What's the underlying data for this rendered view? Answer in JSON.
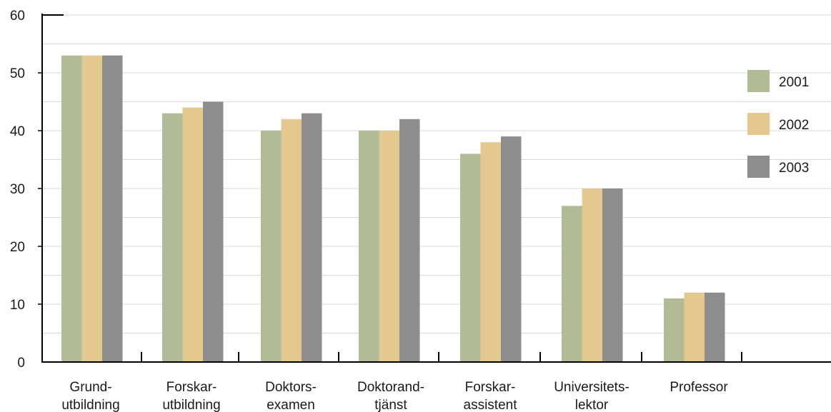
{
  "chart_data": {
    "type": "bar",
    "categories": [
      [
        "Grund-",
        "utbildning"
      ],
      [
        "Forskar-",
        "utbildning"
      ],
      [
        "Doktors-",
        "examen"
      ],
      [
        "Doktorand-",
        "tjänst"
      ],
      [
        "Forskar-",
        "assistent"
      ],
      [
        "Universitets-",
        "lektor"
      ],
      [
        "Professor"
      ]
    ],
    "series": [
      {
        "name": "2001",
        "color": "#b1bc97",
        "values": [
          53,
          43,
          40,
          40,
          36,
          27,
          11
        ]
      },
      {
        "name": "2002",
        "color": "#e5c88f",
        "values": [
          53,
          44,
          42,
          40,
          38,
          30,
          12
        ]
      },
      {
        "name": "2003",
        "color": "#8e8c8d",
        "values": [
          53,
          45,
          43,
          42,
          39,
          30,
          12
        ]
      }
    ],
    "ylim": [
      0,
      60
    ],
    "yticks": [
      "0",
      "10",
      "20",
      "30",
      "40",
      "50",
      "60"
    ],
    "grid": true,
    "legend_position": "right",
    "title": "",
    "xlabel": "",
    "ylabel": ""
  }
}
